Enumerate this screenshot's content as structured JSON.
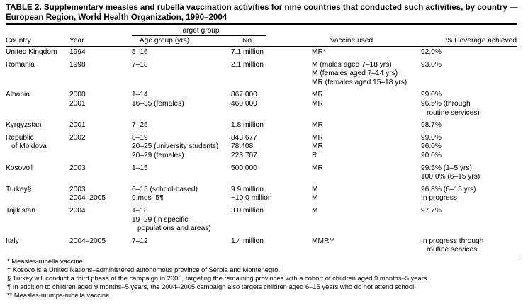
{
  "title": [
    "TABLE 2. Supplementary measles and rubella vaccination activities for nine countries that conducted such activities, by country —",
    "European Region, World Health Organization, 1990–2004"
  ],
  "table": {
    "group_header": "Target group",
    "headers": {
      "country": "Country",
      "year": "Year",
      "age": "Age group (yrs)",
      "number": "No.",
      "vaccine": "Vaccine used",
      "coverage": "% Coverage achieved"
    },
    "rows": [
      {
        "country": [
          "United Kingdom"
        ],
        "year": [
          "1994"
        ],
        "age": [
          "5–16"
        ],
        "number": [
          "7.1 million"
        ],
        "vaccine": [
          "MR*"
        ],
        "coverage": [
          "92.0%"
        ]
      },
      {
        "country": [
          "Romania"
        ],
        "year": [
          "1998"
        ],
        "age": [
          "7–18"
        ],
        "number": [
          "2.1 million"
        ],
        "vaccine": [
          "M (males aged 7–18 yrs)",
          "M (females aged 7–14 yrs)",
          "MR (females aged 15–18 yrs)"
        ],
        "coverage": [
          "93.0%"
        ]
      },
      {
        "country": [
          "Albania"
        ],
        "year": [
          "2000",
          "2001"
        ],
        "age": [
          "1–14",
          "16–35 (females)"
        ],
        "number": [
          "867,000",
          "460,000"
        ],
        "vaccine": [
          "MR",
          "MR"
        ],
        "coverage": [
          "99.0%",
          "96.5% (through",
          "routine services)"
        ]
      },
      {
        "country": [
          "Kyrgyzstan"
        ],
        "year": [
          "2001"
        ],
        "age": [
          "7–25"
        ],
        "number": [
          "1.8 million"
        ],
        "vaccine": [
          "MR"
        ],
        "coverage": [
          "98.7%"
        ]
      },
      {
        "country": [
          "Republic",
          "of Moldova"
        ],
        "year": [
          "2002"
        ],
        "age": [
          "8–19",
          "20–25 (university students)",
          "20–29 (females)"
        ],
        "number": [
          "843,677",
          "78,408",
          "223,707"
        ],
        "vaccine": [
          "MR",
          "MR",
          "R"
        ],
        "coverage": [
          "99.0%",
          "96.0%",
          "90.0%"
        ]
      },
      {
        "country": [
          "Kosovo†"
        ],
        "year": [
          "2003"
        ],
        "age": [
          "1–15"
        ],
        "number": [
          "500,000"
        ],
        "vaccine": [
          "MR"
        ],
        "coverage": [
          "99.5% (1–5 yrs)",
          "100.0% (6–15 yrs)"
        ]
      },
      {
        "country": [
          "Turkey§"
        ],
        "year": [
          "2003",
          "2004–2005"
        ],
        "age": [
          "6–15 (school-based)",
          "9 mos–5¶"
        ],
        "number": [
          "9.9 million",
          "~10.0 million"
        ],
        "vaccine": [
          "M",
          "M"
        ],
        "coverage": [
          "96.8% (6–15 yrs)",
          "In progress"
        ]
      },
      {
        "country": [
          "Tajikistan"
        ],
        "year": [
          "2004"
        ],
        "age": [
          "1–18",
          "19–29 (in specific",
          "populations and areas)"
        ],
        "number": [
          "3.0 million"
        ],
        "vaccine": [
          "M"
        ],
        "coverage": [
          "97.7%"
        ]
      },
      {
        "country": [
          "Italy"
        ],
        "year": [
          "2004–2005"
        ],
        "age": [
          "7–12"
        ],
        "number": [
          "1.4 million"
        ],
        "vaccine": [
          "MMR**"
        ],
        "coverage": [
          "In progress through",
          "routine services"
        ]
      }
    ]
  },
  "footnotes": [
    "* Measles-rubella vaccine.",
    "† Kosovo is a United Nations–administered autonomous province of Serbia and Montenegro.",
    "§ Turkey will conduct a third phase of the campaign in 2005, targeting the remaining provinces with a cohort of children aged 9 months–5 years.",
    "¶ In addition to children aged 9 months–5 years, the 2004–2005 campaign also targets children aged 6–15 years who do not attend school.",
    "** Measles-mumps-rubella vaccine."
  ]
}
